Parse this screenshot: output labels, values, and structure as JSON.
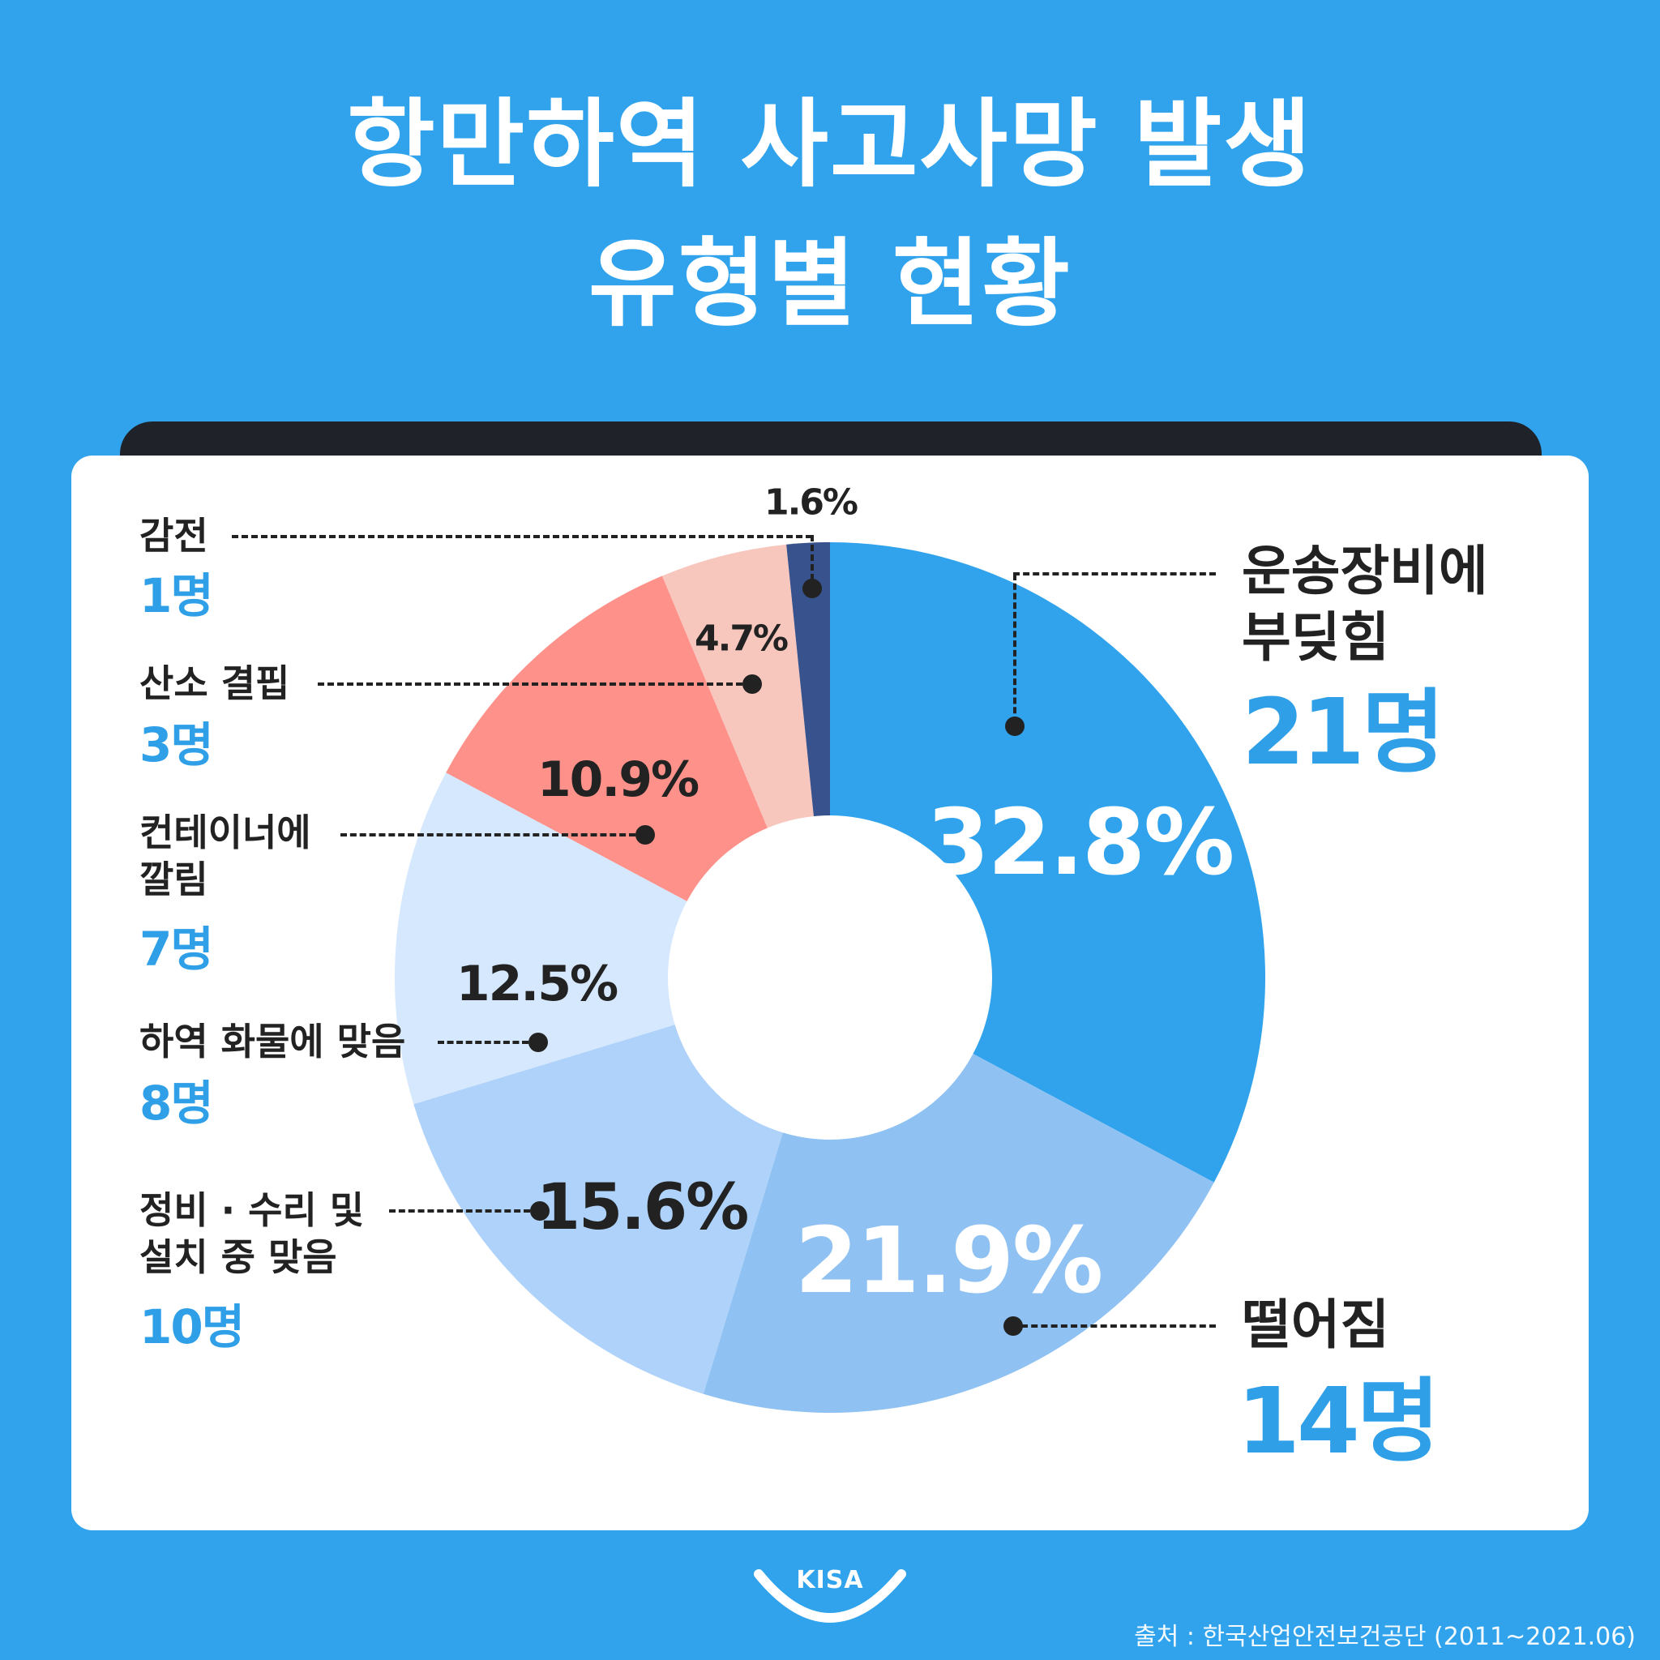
{
  "title": {
    "line1": "항만하역 사고사망 발생",
    "line2": "유형별 현황"
  },
  "chart_data": {
    "type": "pie",
    "title": "항만하역 사고사망 발생 유형별 현황",
    "categories": [
      "운송장비에 부딪힘",
      "떨어짐",
      "정비 · 수리 및 설치 중 맞음",
      "하역 화물에 맞음",
      "컨테이너에 깔림",
      "산소 결핍",
      "감전"
    ],
    "values": [
      32.8,
      21.9,
      15.6,
      12.5,
      10.9,
      4.7,
      1.6
    ],
    "counts": [
      "21명",
      "14명",
      "10명",
      "8명",
      "7명",
      "3명",
      "1명"
    ],
    "percent_labels": [
      "32.8%",
      "21.9%",
      "15.6%",
      "12.5%",
      "10.9%",
      "4.7%",
      "1.6%"
    ],
    "colors": [
      "#30a3ec",
      "#8fc2f2",
      "#aed2fa",
      "#d5e8fd",
      "#fe928a",
      "#f7c6bd",
      "#37528c"
    ],
    "donut": true
  },
  "labels": {
    "s0": [
      "운송장비에",
      "부딪힘"
    ],
    "s1": [
      "떨어짐"
    ],
    "s2": [
      "정비 · 수리 및",
      "설치 중 맞음"
    ],
    "s3": [
      "하역 화물에 맞음"
    ],
    "s4": [
      "컨테이너에",
      "깔림"
    ],
    "s5": [
      "산소 결핍"
    ],
    "s6": [
      "감전"
    ]
  },
  "logo": "KISA",
  "source": "출처 : 한국산업안전보건공단 (2011~2021.06)"
}
